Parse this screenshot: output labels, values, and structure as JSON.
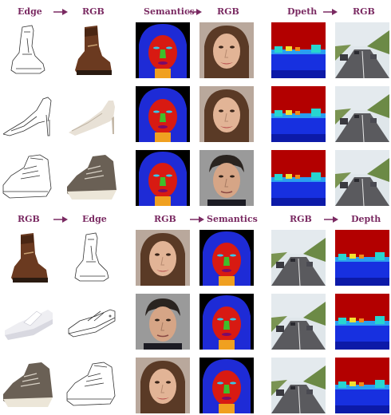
{
  "colors": {
    "header_text": "#7a2a62",
    "arrow": "#7a2a62",
    "sem_background": "#000000",
    "sem_hair": "#1e2bd6",
    "sem_face": "#d81a12",
    "sem_nose": "#3fbf2a",
    "sem_eyes": "#37c8e8",
    "sem_neck": "#f0a020",
    "depth_far": "#b30000",
    "depth_near": "#1730e0"
  },
  "headers": {
    "top": {
      "edge": "Edge",
      "rgb1": "RGB",
      "semantics": "Semantics",
      "rgb2": "RGB",
      "depth": "Dpeth",
      "rgb3": "RGB"
    },
    "bottom": {
      "rgb1": "RGB",
      "edge": "Edge",
      "rgb2": "RGB",
      "semantics": "Semantics",
      "rgb3": "RGB",
      "depth": "Depth"
    }
  },
  "grid": {
    "top_section": [
      [
        "edge-boot",
        "photo-boot",
        "semantic-face",
        "photo-face-woman",
        "depth-road",
        "photo-road"
      ],
      [
        "edge-heel",
        "photo-heel",
        "semantic-face",
        "photo-face-woman",
        "depth-road",
        "photo-road"
      ],
      [
        "edge-sneaker",
        "photo-sneaker",
        "semantic-face",
        "photo-face-man",
        "depth-road",
        "photo-road"
      ]
    ],
    "bottom_section": [
      [
        "photo-boot",
        "edge-boot",
        "photo-face-woman",
        "semantic-face",
        "photo-road",
        "depth-road"
      ],
      [
        "photo-sandal",
        "edge-sandal",
        "photo-face-man",
        "semantic-face",
        "photo-road",
        "depth-road"
      ],
      [
        "photo-sneaker",
        "edge-sneaker",
        "photo-face-woman",
        "semantic-face",
        "photo-road",
        "depth-road"
      ]
    ]
  }
}
